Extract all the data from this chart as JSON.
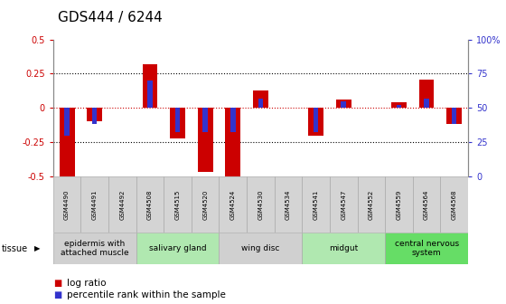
{
  "title": "GDS444 / 6244",
  "samples": [
    "GSM4490",
    "GSM4491",
    "GSM4492",
    "GSM4508",
    "GSM4515",
    "GSM4520",
    "GSM4524",
    "GSM4530",
    "GSM4534",
    "GSM4541",
    "GSM4547",
    "GSM4552",
    "GSM4559",
    "GSM4564",
    "GSM4568"
  ],
  "log_ratio": [
    -0.5,
    -0.1,
    0.0,
    0.32,
    -0.22,
    -0.47,
    -0.5,
    0.13,
    0.0,
    -0.2,
    0.06,
    0.0,
    0.04,
    0.21,
    -0.12
  ],
  "percentile": [
    30,
    38,
    50,
    70,
    32,
    32,
    32,
    57,
    50,
    32,
    55,
    50,
    52,
    57,
    38
  ],
  "ylim": [
    -0.5,
    0.5
  ],
  "ylim_right": [
    0,
    100
  ],
  "yticks_left": [
    -0.5,
    -0.25,
    0.0,
    0.25,
    0.5
  ],
  "ytick_labels_left": [
    "-0.5",
    "-0.25",
    "0",
    "0.25",
    "0.5"
  ],
  "yticks_right": [
    0,
    25,
    50,
    75,
    100
  ],
  "ytick_labels_right": [
    "0",
    "25",
    "50",
    "75",
    "100%"
  ],
  "tissue_groups": [
    {
      "label": "epidermis with\nattached muscle",
      "start": 0,
      "end": 3,
      "color": "#d0d0d0"
    },
    {
      "label": "salivary gland",
      "start": 3,
      "end": 6,
      "color": "#b0e8b0"
    },
    {
      "label": "wing disc",
      "start": 6,
      "end": 9,
      "color": "#d0d0d0"
    },
    {
      "label": "midgut",
      "start": 9,
      "end": 12,
      "color": "#b0e8b0"
    },
    {
      "label": "central nervous\nsystem",
      "start": 12,
      "end": 15,
      "color": "#66dd66"
    }
  ],
  "bar_width": 0.55,
  "blue_bar_width": 0.18,
  "red_color": "#cc0000",
  "blue_color": "#3333cc",
  "grid_color": "#000000",
  "sample_box_color": "#d4d4d4",
  "bg_color": "#ffffff",
  "title_fontsize": 11,
  "tick_fontsize": 7,
  "sample_fontsize": 5,
  "tissue_fontsize": 6.5,
  "legend_fontsize": 7.5,
  "label_log_ratio": "log ratio",
  "label_percentile": "percentile rank within the sample"
}
